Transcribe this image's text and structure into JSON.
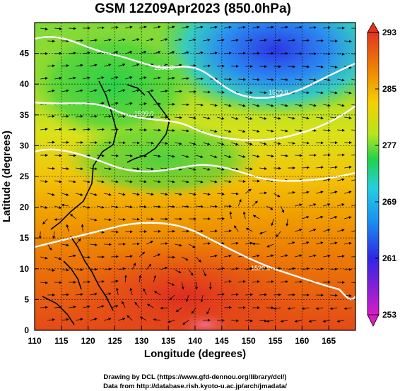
{
  "title": "GSM 12Z09Apr2023 (850.0hPa)",
  "chart_data": {
    "type": "heatmap",
    "title": "GSM 12Z09Apr2023 (850.0hPa)",
    "xlabel": "Longitude (degrees)",
    "ylabel": "Latitude  (degrees)",
    "xlim": [
      110,
      170
    ],
    "ylim": [
      0,
      50
    ],
    "x_ticks": [
      "110",
      "115",
      "120",
      "125",
      "130",
      "135",
      "140",
      "145",
      "150",
      "155",
      "160",
      "165"
    ],
    "y_ticks": [
      "0",
      "5",
      "10",
      "15",
      "20",
      "25",
      "30",
      "35",
      "40",
      "45"
    ],
    "colorbar": {
      "ticks": [
        "293",
        "285",
        "277",
        "269",
        "261",
        "253"
      ],
      "range": [
        253,
        293
      ],
      "colors": [
        "#d81bc8",
        "#2e26e6",
        "#1996f0",
        "#24cfe0",
        "#22d24a",
        "#b7e51e",
        "#f5d000",
        "#f08a00",
        "#e2391e"
      ]
    },
    "contour_labels": [
      "1500.0",
      "1500.0",
      "1500.0",
      "1520.0"
    ],
    "grid": true
  },
  "credits": {
    "line1": "Drawing by DCL (https://www.gfd-dennou.org/library/dcl/)",
    "line2": "Data from http://database.rish.kyoto-u.ac.jp/arch/jmadata/"
  }
}
